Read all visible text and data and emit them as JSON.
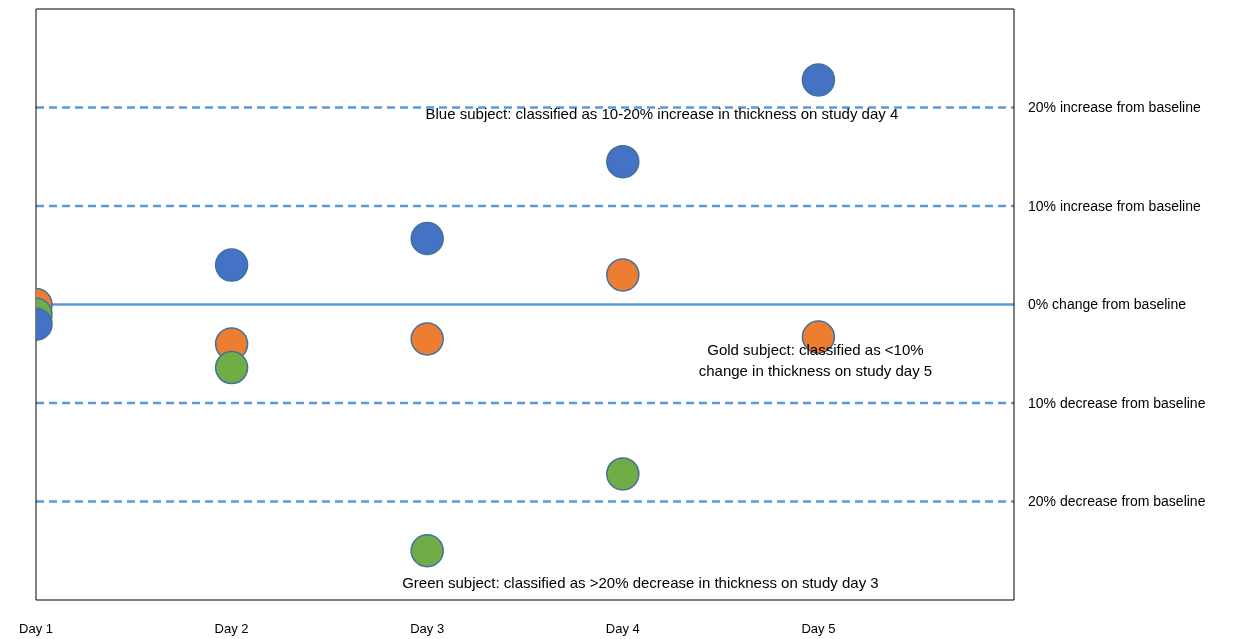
{
  "chart_data": {
    "type": "scatter",
    "categories": [
      "Day 1",
      "Day 2",
      "Day 3",
      "Day 4",
      "Day 5"
    ],
    "ylim": [
      -30,
      30
    ],
    "tick_labels": "x",
    "marker": "circle",
    "grid": false,
    "legend": false,
    "series": [
      {
        "color": "#ed7d31",
        "values": [
          0,
          -4,
          -3.5,
          3,
          -3.3
        ]
      },
      {
        "color": "#70ad47",
        "values": [
          -1,
          -6.4,
          -25,
          -17.2,
          null
        ]
      },
      {
        "color": "#4472c4",
        "values": [
          -2,
          4,
          6.7,
          14.5,
          22.8
        ]
      }
    ],
    "ref_lines": [
      {
        "axis": "y",
        "value": 20,
        "label": "20% increase from baseline",
        "color": "#5b9bd5",
        "line_style": "dashed"
      },
      {
        "axis": "y",
        "value": 10,
        "label": "10% increase from baseline",
        "color": "#5b9bd5",
        "line_style": "dashed"
      },
      {
        "axis": "y",
        "value": 0,
        "label": "0% change from baseline",
        "color": "#5b9bd5",
        "line_style": "solid"
      },
      {
        "axis": "y",
        "value": -10,
        "label": "10% decrease from baseline",
        "color": "#5b9bd5",
        "line_style": "dashed"
      },
      {
        "axis": "y",
        "value": -20,
        "label": "20% decrease from baseline",
        "color": "#5b9bd5",
        "line_style": "dashed"
      }
    ],
    "annotations": [
      "Blue subject: classified as 10-20% increase in thickness on study day 4",
      "Gold subject: classified as <10%\nchange in thickness on study day 5",
      "Green subject: classified as >20% decrease in thickness on study day 3"
    ]
  }
}
